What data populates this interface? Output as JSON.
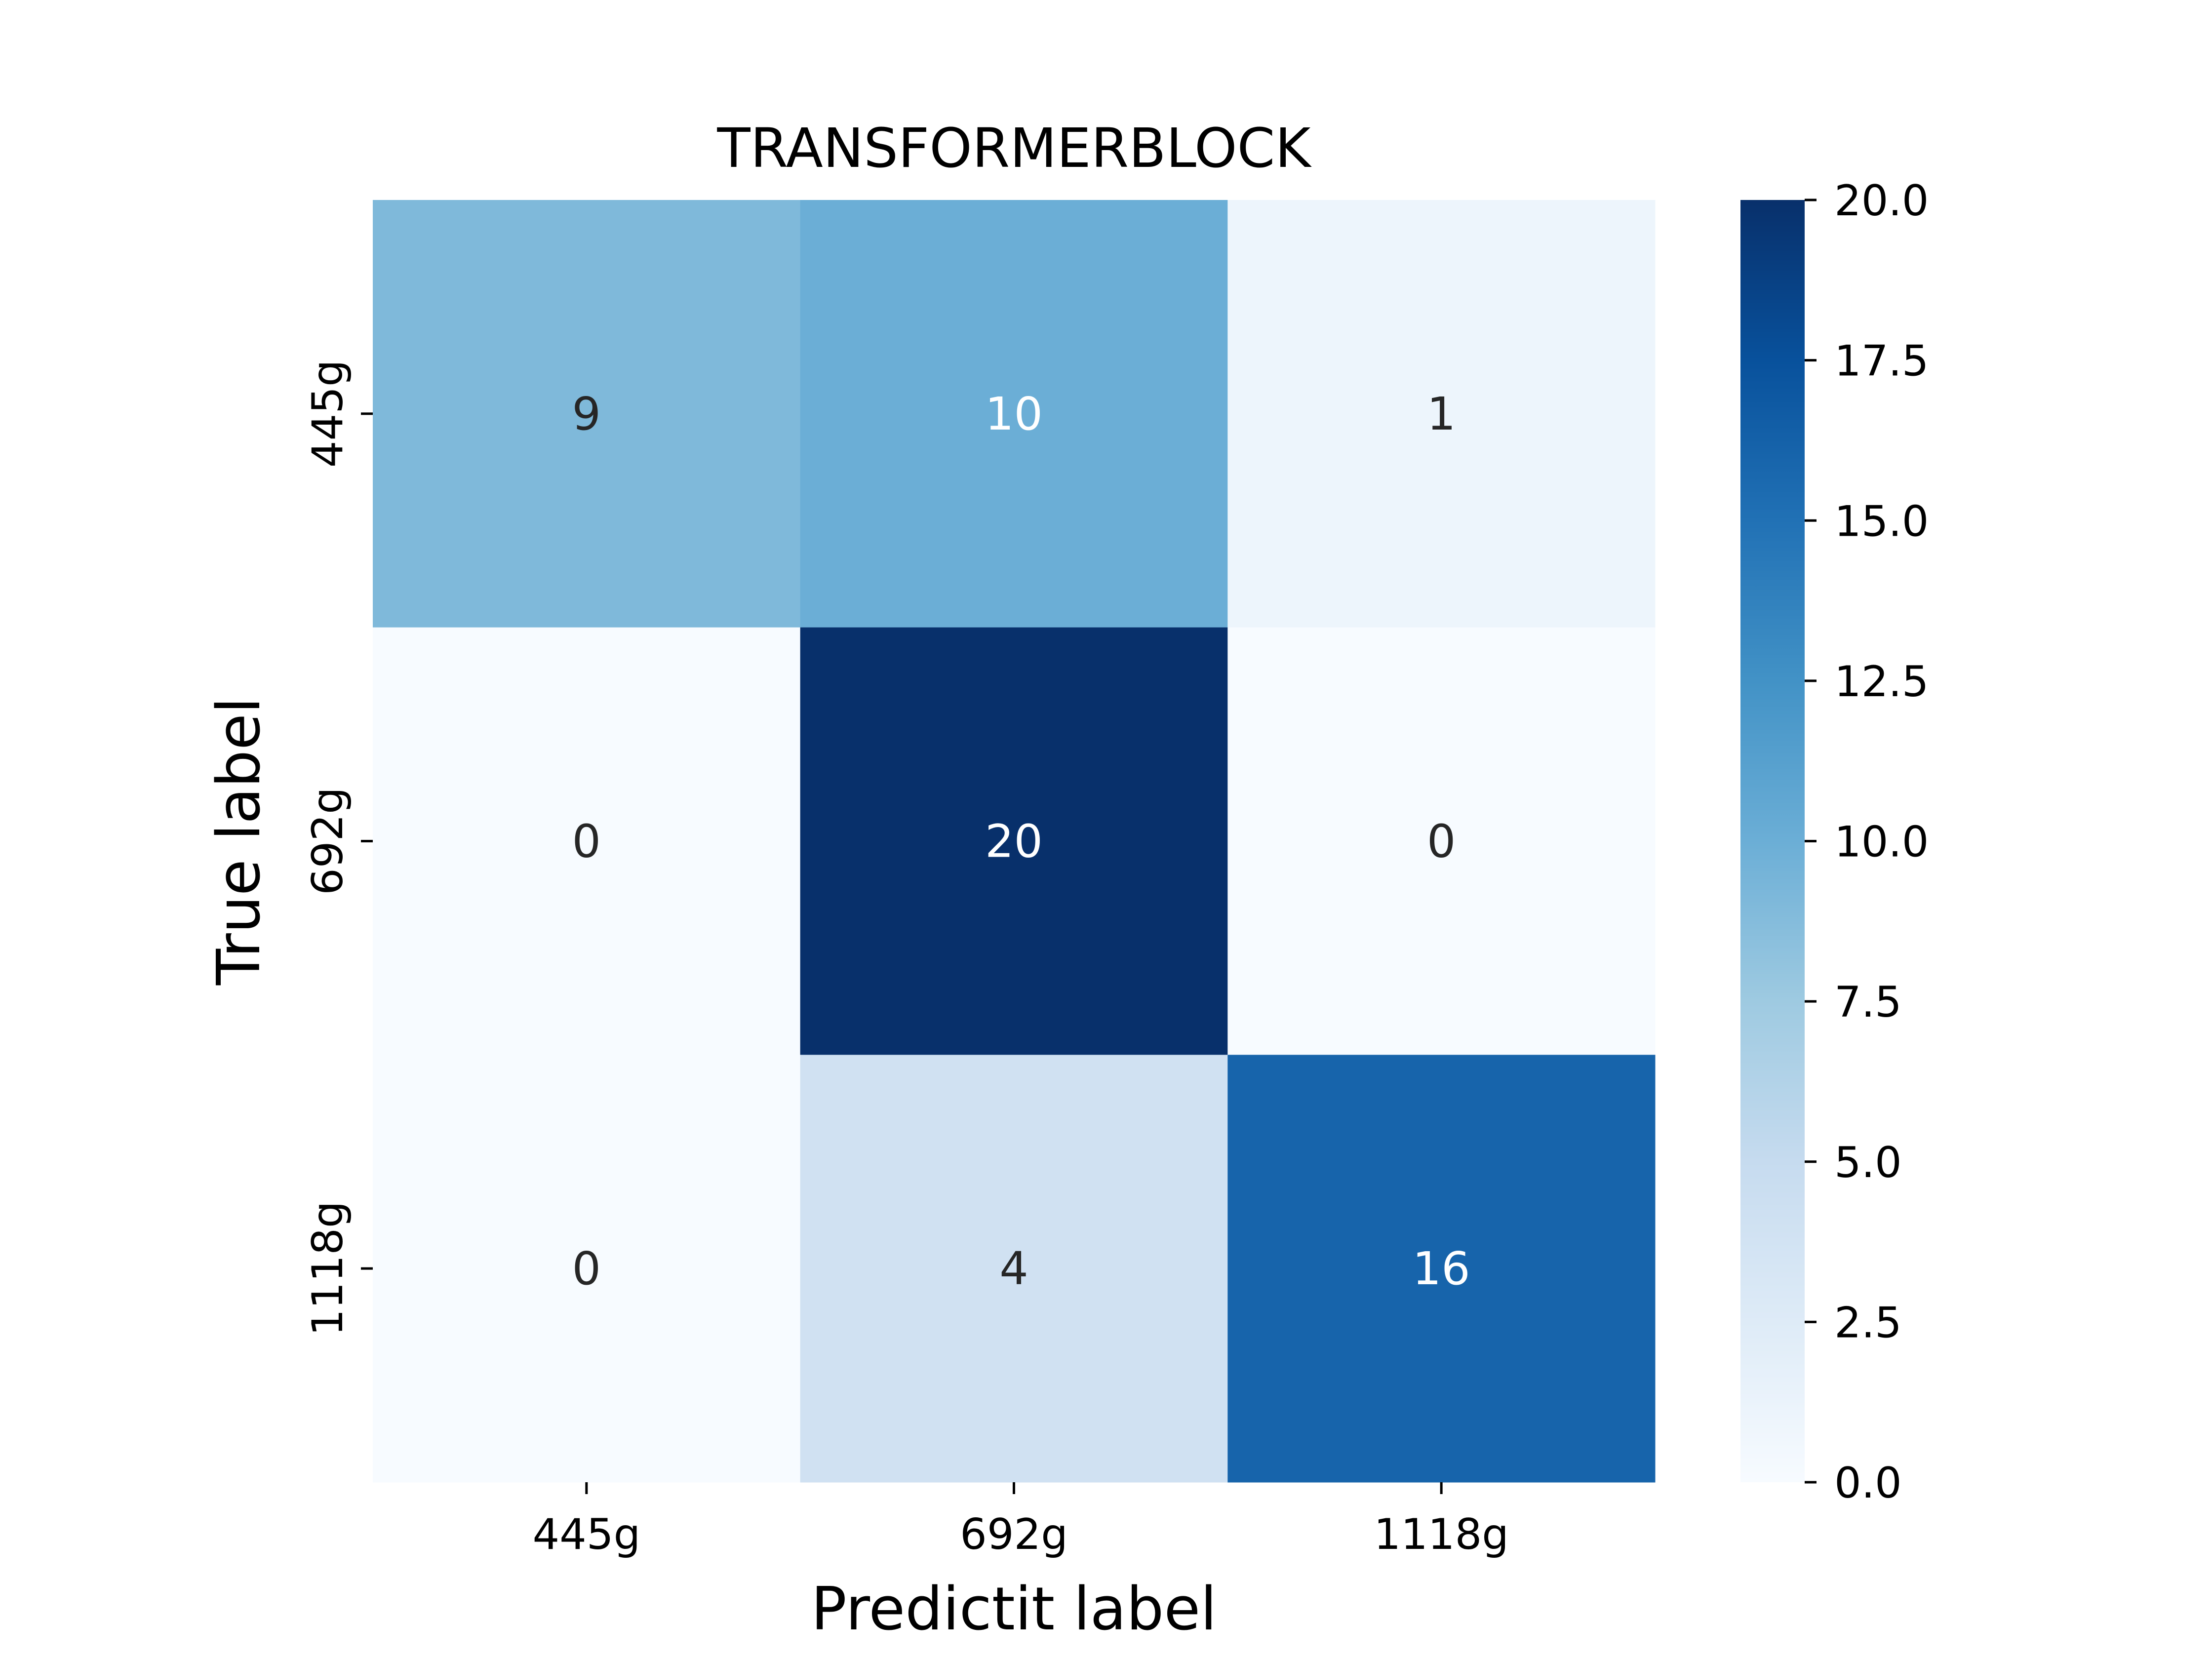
{
  "chart_data": {
    "type": "heatmap",
    "title": "TRANSFORMERBLOCK",
    "xlabel": "Predictit label",
    "ylabel": "True label",
    "x_categories": [
      "445g",
      "692g",
      "1118g"
    ],
    "y_categories": [
      "445g",
      "692g",
      "1118g"
    ],
    "values": [
      [
        9,
        10,
        1
      ],
      [
        0,
        20,
        0
      ],
      [
        0,
        4,
        16
      ]
    ],
    "colormap": "Blues",
    "colorbar": {
      "range": [
        0,
        20
      ],
      "ticks": [
        0.0,
        2.5,
        5.0,
        7.5,
        10.0,
        12.5,
        15.0,
        17.5,
        20.0
      ],
      "tick_labels": [
        "0.0",
        "2.5",
        "5.0",
        "7.5",
        "10.0",
        "12.5",
        "15.0",
        "17.5",
        "20.0"
      ]
    },
    "annotated": true,
    "grid": false
  },
  "colors": {
    "colormap_stops": [
      "#f7fbff",
      "#deebf7",
      "#c6dbef",
      "#9ecae1",
      "#6baed6",
      "#4292c6",
      "#2171b5",
      "#08519c",
      "#08306b"
    ],
    "annotation_dark": "#262626",
    "annotation_light": "#ffffff"
  }
}
